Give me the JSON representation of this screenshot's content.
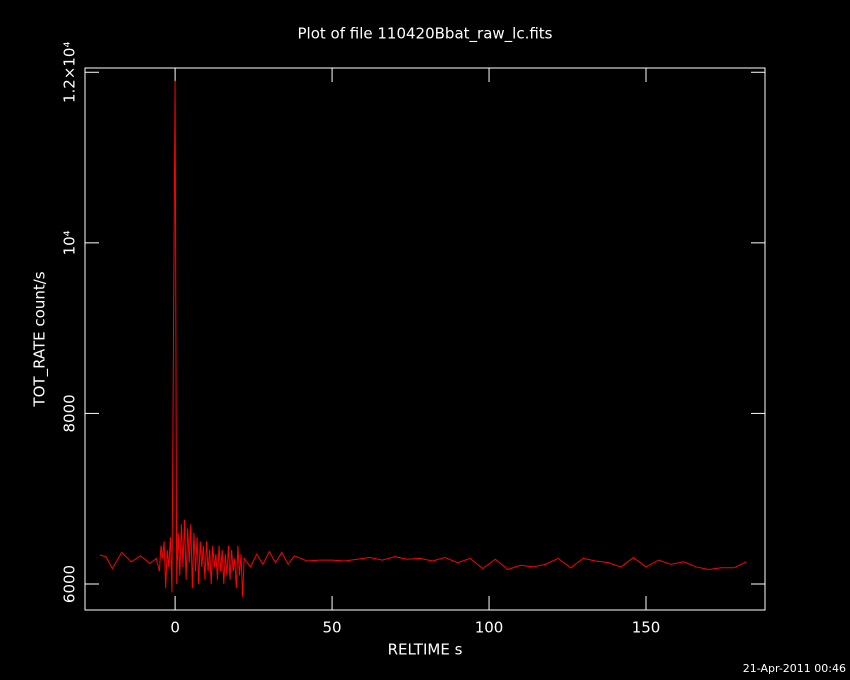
{
  "chart_data": {
    "type": "line",
    "title": "Plot of file 110420Bbat_raw_lc.fits",
    "x_label": "RELTIME  s",
    "y_label": "TOT_RATE  count/s",
    "footer": "21-Apr-2011 00:46",
    "x": [
      -24,
      -22,
      -20,
      -17,
      -14,
      -11,
      -8,
      -6,
      -5,
      -4.5,
      -4,
      -3.5,
      -3,
      -2.5,
      -2,
      -1.5,
      -1,
      -0.5,
      0,
      0.5,
      1,
      1.5,
      2,
      2.5,
      3,
      3.5,
      4,
      4.5,
      5,
      5.5,
      6,
      6.5,
      7,
      7.5,
      8,
      8.5,
      9,
      9.5,
      10,
      10.5,
      11,
      11.5,
      12,
      12.5,
      13,
      13.5,
      14,
      14.5,
      15,
      15.5,
      16,
      16.5,
      17,
      17.5,
      18,
      18.5,
      19,
      19.5,
      20,
      20.5,
      21,
      21.5,
      22,
      24,
      26,
      28,
      30,
      32,
      34,
      36,
      38,
      42,
      46,
      50,
      54,
      58,
      62,
      66,
      70,
      74,
      78,
      82,
      86,
      90,
      94,
      98,
      102,
      106,
      110,
      114,
      118,
      122,
      126,
      130,
      134,
      138,
      142,
      146,
      150,
      154,
      158,
      162,
      166,
      170,
      174,
      178,
      182
    ],
    "series": [
      {
        "name": "TOT_RATE",
        "color": "#ff0000",
        "values": [
          6340,
          6320,
          6180,
          6370,
          6260,
          6330,
          6240,
          6300,
          6150,
          6450,
          6300,
          6500,
          5950,
          6400,
          6200,
          6550,
          5900,
          9000,
          11900,
          6000,
          6600,
          6100,
          6700,
          6200,
          6750,
          6050,
          6650,
          6250,
          6700,
          5950,
          6600,
          6150,
          6550,
          6000,
          6500,
          6200,
          6450,
          6050,
          6500,
          6150,
          6400,
          6000,
          6450,
          6200,
          6350,
          6050,
          6450,
          6150,
          6400,
          6000,
          6350,
          6100,
          6450,
          6050,
          6400,
          6150,
          6300,
          5950,
          6450,
          6100,
          6350,
          5850,
          6300,
          6200,
          6350,
          6230,
          6380,
          6250,
          6370,
          6230,
          6330,
          6270,
          6280,
          6280,
          6270,
          6290,
          6310,
          6280,
          6320,
          6290,
          6300,
          6270,
          6310,
          6250,
          6300,
          6180,
          6290,
          6170,
          6220,
          6200,
          6230,
          6300,
          6190,
          6300,
          6270,
          6250,
          6200,
          6310,
          6200,
          6280,
          6230,
          6260,
          6200,
          6170,
          6190,
          6190,
          6260
        ]
      }
    ],
    "xlim": [
      -28.7,
      187.9
    ],
    "ylim": [
      5695,
      12050
    ],
    "xticks": [
      0,
      50,
      100,
      150
    ],
    "yticks": [
      6000,
      8000,
      {
        "value": 10000,
        "label": "10⁴"
      },
      {
        "value": 12000,
        "label": "1.2×10⁴"
      }
    ]
  }
}
